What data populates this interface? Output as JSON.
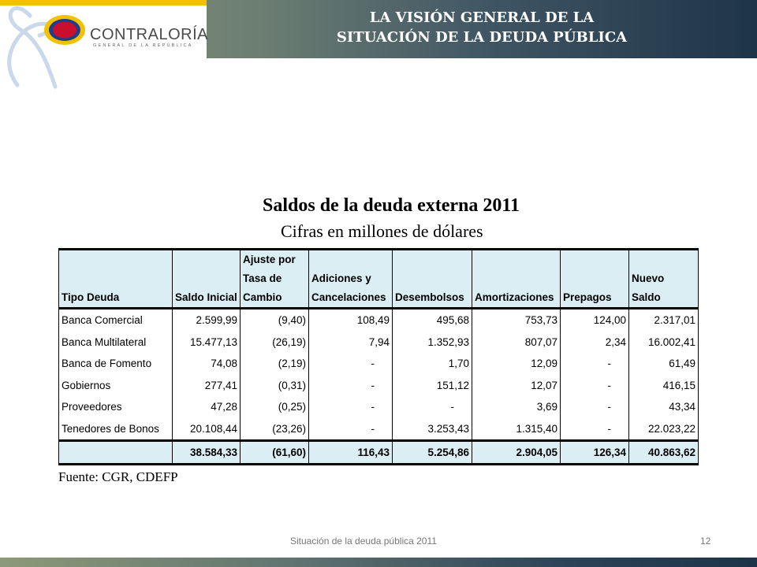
{
  "header": {
    "title_line1": "LA VISIÓN GENERAL DE LA",
    "title_line2": "SITUACIÓN DE LA DEUDA PÚBLICA",
    "logo_name": "CONTRALORÍA",
    "logo_sub": "GENERAL DE LA REPÚBLICA"
  },
  "table": {
    "title": "Saldos de la deuda externa 2011",
    "subtitle": "Cifras en millones de dólares",
    "columns": [
      "Tipo Deuda",
      "Saldo Inicial",
      "Ajuste por Tasa de Cambio",
      "Adiciones y Cancelaciones",
      "Desembolsos",
      "Amortizaciones",
      "Prepagos",
      "Nuevo Saldo"
    ],
    "rows": [
      [
        "Banca Comercial",
        "2.599,99",
        "(9,40)",
        "108,49",
        "495,68",
        "753,73",
        "124,00",
        "2.317,01"
      ],
      [
        "Banca Multilateral",
        "15.477,13",
        "(26,19)",
        "7,94",
        "1.352,93",
        "807,07",
        "2,34",
        "16.002,41"
      ],
      [
        "Banca de Fomento",
        "74,08",
        "(2,19)",
        "-",
        "1,70",
        "12,09",
        "-",
        "61,49"
      ],
      [
        "Gobiernos",
        "277,41",
        "(0,31)",
        "-",
        "151,12",
        "12,07",
        "-",
        "416,15"
      ],
      [
        "Proveedores",
        "47,28",
        "(0,25)",
        "-",
        "-",
        "3,69",
        "-",
        "43,34"
      ],
      [
        "Tenedores de Bonos",
        "20.108,44",
        "(23,26)",
        "-",
        "3.253,43",
        "1.315,40",
        "-",
        "22.023,22"
      ]
    ],
    "totals": [
      "",
      "38.584,33",
      "(61,60)",
      "116,43",
      "5.254,86",
      "2.904,05",
      "126,34",
      "40.863,62"
    ],
    "source": "Fuente: CGR, CDEFP"
  },
  "footer": {
    "text": "Situación de la deuda pública 2011",
    "page": "12"
  },
  "colors": {
    "header_start": "#8c9a78",
    "header_end": "#1e3447",
    "table_header_bg": "#dbeef4",
    "logo_yellow": "#f2c200",
    "logo_red": "#c8102e",
    "logo_blue": "#1f3d8a"
  }
}
